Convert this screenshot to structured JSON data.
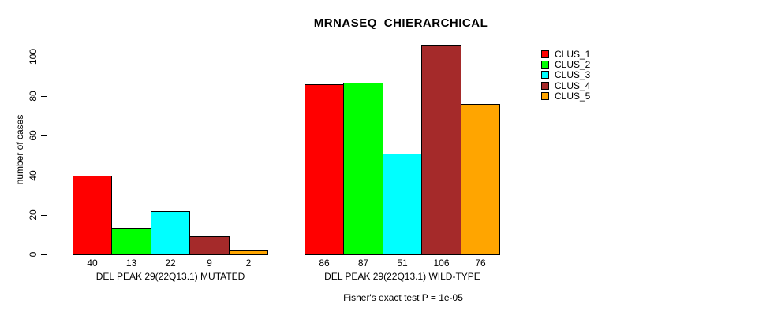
{
  "chart_data": {
    "type": "bar",
    "title": "MRNASEQ_CHIERARCHICAL",
    "ylabel": "number of cases",
    "ylim": [
      0,
      100
    ],
    "yticks": [
      0,
      20,
      40,
      60,
      80,
      100
    ],
    "grid": false,
    "legend_position": "right",
    "categories": [
      "DEL PEAK 29(22Q13.1) MUTATED",
      "DEL PEAK 29(22Q13.1) WILD-TYPE"
    ],
    "groups": [
      {
        "label": "DEL PEAK 29(22Q13.1) MUTATED",
        "values": [
          40,
          13,
          22,
          9,
          2
        ]
      },
      {
        "label": "DEL PEAK 29(22Q13.1) WILD-TYPE",
        "values": [
          86,
          87,
          51,
          106,
          76
        ]
      }
    ],
    "series": [
      {
        "name": "CLUS_1",
        "color": "#FF0000",
        "values": [
          40,
          86
        ]
      },
      {
        "name": "CLUS_2",
        "color": "#00FF00",
        "values": [
          13,
          87
        ]
      },
      {
        "name": "CLUS_3",
        "color": "#00FFFF",
        "values": [
          22,
          51
        ]
      },
      {
        "name": "CLUS_4",
        "color": "#A52A2A",
        "values": [
          9,
          106
        ]
      },
      {
        "name": "CLUS_5",
        "color": "#FFA500",
        "values": [
          2,
          76
        ]
      }
    ],
    "annotation": "Fisher's exact test P = 1e-05"
  },
  "colors": {
    "background": "#FFFFFF",
    "axis": "#000000",
    "text": "#000000"
  }
}
